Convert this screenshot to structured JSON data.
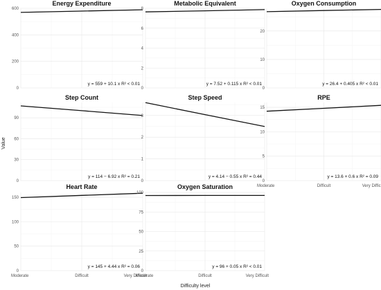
{
  "figure": {
    "ylabel": "Value",
    "xlabel": "Difficulty level"
  },
  "chart_data": [
    {
      "type": "line",
      "title": "Energy Expenditure",
      "categories": [
        "Moderate",
        "Difficult",
        "Very Difficult"
      ],
      "x": [
        1,
        2,
        3
      ],
      "series": [
        {
          "values": [
            569.1,
            579.2,
            589.3
          ]
        }
      ],
      "ylim": [
        0,
        600
      ],
      "yticks": [
        0,
        200,
        400,
        600
      ],
      "equation": "y = 559 + 10.1 x   R² < 0.01",
      "show_x_labels": false
    },
    {
      "type": "line",
      "title": "Metabolic Equivalent",
      "categories": [
        "Moderate",
        "Difficult",
        "Very Difficult"
      ],
      "x": [
        1,
        2,
        3
      ],
      "series": [
        {
          "values": [
            7.635,
            7.75,
            7.865
          ]
        }
      ],
      "ylim": [
        0,
        8
      ],
      "yticks": [
        0,
        2,
        4,
        6,
        8
      ],
      "equation": "y = 7.52 + 0.115 x   R² < 0.01",
      "show_x_labels": false
    },
    {
      "type": "line",
      "title": "Oxygen Consumption",
      "categories": [
        "Moderate",
        "Difficult",
        "Very Difficult"
      ],
      "x": [
        1,
        2,
        3
      ],
      "series": [
        {
          "values": [
            26.805,
            27.21,
            27.615
          ]
        }
      ],
      "ylim": [
        0,
        28
      ],
      "yticks": [
        0,
        10,
        20
      ],
      "equation": "y = 26.4 + 0.405 x   R² < 0.01",
      "show_x_labels": false
    },
    {
      "type": "line",
      "title": "Step Count",
      "categories": [
        "Moderate",
        "Difficult",
        "Very Difficult"
      ],
      "x": [
        1,
        2,
        3
      ],
      "series": [
        {
          "values": [
            107.08,
            100.16,
            93.24
          ]
        }
      ],
      "ylim": [
        0,
        112
      ],
      "yticks": [
        0,
        30,
        60,
        90
      ],
      "equation": "y = 114 − 6.92 x   R² = 0.21",
      "show_x_labels": false
    },
    {
      "type": "line",
      "title": "Step Speed",
      "categories": [
        "Moderate",
        "Difficult",
        "Very Difficult"
      ],
      "x": [
        1,
        2,
        3
      ],
      "series": [
        {
          "values": [
            3.59,
            3.04,
            2.49
          ]
        }
      ],
      "ylim": [
        0,
        3.6
      ],
      "yticks": [
        0,
        1,
        2,
        3
      ],
      "equation": "y = 4.14 − 0.55 x   R² = 0.44",
      "show_x_labels": false
    },
    {
      "type": "line",
      "title": "RPE",
      "categories": [
        "Moderate",
        "Difficult",
        "Very Difficult"
      ],
      "x": [
        1,
        2,
        3
      ],
      "series": [
        {
          "values": [
            14.2,
            14.8,
            15.4
          ]
        }
      ],
      "ylim": [
        0,
        16
      ],
      "yticks": [
        0,
        5,
        10,
        15
      ],
      "equation": "y = 13.6 + 0.6 x   R² = 0.09",
      "show_x_labels": true
    },
    {
      "type": "line",
      "title": "Heart Rate",
      "categories": [
        "Moderate",
        "Difficult",
        "Very Difficult"
      ],
      "x": [
        1,
        2,
        3
      ],
      "series": [
        {
          "values": [
            149.44,
            153.88,
            158.32
          ]
        }
      ],
      "ylim": [
        0,
        160
      ],
      "yticks": [
        0,
        50,
        100,
        150
      ],
      "equation": "y = 145 + 4.44 x   R² = 0.06",
      "show_x_labels": true
    },
    {
      "type": "line",
      "title": "Oxygen Saturation",
      "categories": [
        "Moderate",
        "Difficult",
        "Very Difficult"
      ],
      "x": [
        1,
        2,
        3
      ],
      "series": [
        {
          "values": [
            96.05,
            96.1,
            96.15
          ]
        }
      ],
      "ylim": [
        0,
        100
      ],
      "yticks": [
        0,
        25,
        50,
        75,
        100
      ],
      "equation": "y = 96 + 0.05 x   R² < 0.01",
      "show_x_labels": true
    }
  ]
}
